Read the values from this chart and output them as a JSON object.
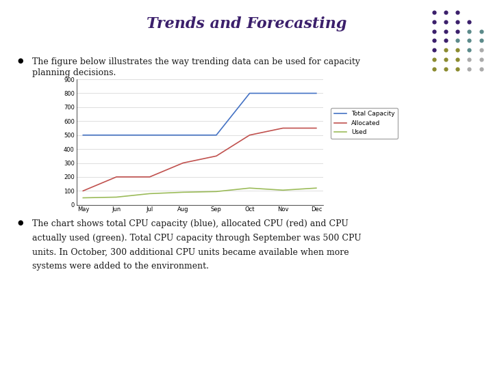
{
  "title": "Trends and Forecasting",
  "title_color": "#3B1F6B",
  "title_fontsize": 16,
  "bullet_text1_line1": "The figure below illustrates the way trending data can be used for capacity",
  "bullet_text1_line2": "planning decisions.",
  "bullet_text2_line1": "The chart shows total CPU capacity (blue), allocated CPU (red) and CPU",
  "bullet_text2_line2": "actually used (green). Total CPU capacity through September was 500 CPU",
  "bullet_text2_line3": "units. In October, 300 additional CPU units became available when more",
  "bullet_text2_line4": "systems were added to the environment.",
  "text_color": "#1a1a1a",
  "text_fontsize": 9,
  "months": [
    "May",
    "Jun",
    "Jul",
    "Aug",
    "Sep",
    "Oct",
    "Nov",
    "Dec"
  ],
  "total_capacity": [
    500,
    500,
    500,
    500,
    500,
    800,
    800,
    800
  ],
  "allocated": [
    100,
    200,
    200,
    300,
    350,
    500,
    550,
    550
  ],
  "used": [
    50,
    55,
    80,
    90,
    95,
    120,
    105,
    120
  ],
  "capacity_color": "#4472C4",
  "allocated_color": "#C0504D",
  "used_color": "#9BBB59",
  "ylim": [
    0,
    900
  ],
  "yticks": [
    0,
    100,
    200,
    300,
    400,
    500,
    600,
    700,
    800,
    900
  ],
  "background_color": "#ffffff",
  "chart_bg": "#ffffff",
  "grid_color": "#d0d0d0",
  "dot_pattern": [
    [
      "#3B1F6B",
      "#3B1F6B",
      "#3B1F6B",
      null,
      null
    ],
    [
      "#3B1F6B",
      "#3B1F6B",
      "#3B1F6B",
      "#3B1F6B",
      null
    ],
    [
      "#3B1F6B",
      "#3B1F6B",
      "#3B1F6B",
      "#5B8A8A",
      "#5B8A8A"
    ],
    [
      "#3B1F6B",
      "#3B1F6B",
      "#5B8A8A",
      "#5B8A8A",
      "#5B8A8A"
    ],
    [
      "#3B1F6B",
      "#8B8B30",
      "#8B8B30",
      "#5B8A8A",
      "#aaaaaa"
    ],
    [
      "#8B8B30",
      "#8B8B30",
      "#8B8B30",
      "#aaaaaa",
      "#aaaaaa"
    ],
    [
      "#8B8B30",
      "#8B8B30",
      "#8B8B30",
      "#aaaaaa",
      "#aaaaaa"
    ]
  ]
}
